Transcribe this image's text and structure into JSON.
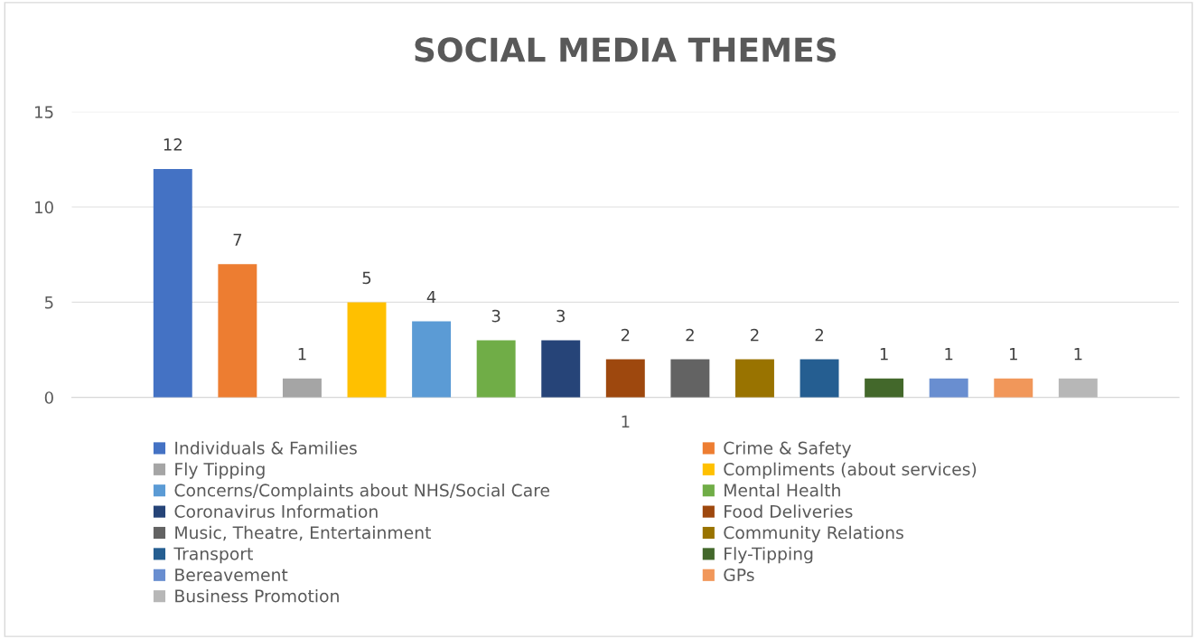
{
  "chart_data": {
    "type": "bar",
    "title": "SOCIAL MEDIA THEMES",
    "categories": [
      "1"
    ],
    "ylim": [
      0,
      15
    ],
    "yticks": [
      0,
      5,
      10,
      15
    ],
    "grid": "y",
    "legend": "bottom",
    "data_labels": true,
    "series": [
      {
        "name": "Individuals & Families",
        "color": "#4472c4",
        "values": [
          12
        ]
      },
      {
        "name": "Crime & Safety",
        "color": "#ed7d31",
        "values": [
          7
        ]
      },
      {
        "name": "Fly Tipping",
        "color": "#a5a5a5",
        "values": [
          1
        ]
      },
      {
        "name": "Compliments (about services)",
        "color": "#ffc000",
        "values": [
          5
        ]
      },
      {
        "name": "Concerns/Complaints about NHS/Social Care",
        "color": "#5b9bd5",
        "values": [
          4
        ]
      },
      {
        "name": "Mental Health",
        "color": "#70ad47",
        "values": [
          3
        ]
      },
      {
        "name": "Coronavirus Information",
        "color": "#264478",
        "values": [
          3
        ]
      },
      {
        "name": "Food Deliveries",
        "color": "#9e480e",
        "values": [
          2
        ]
      },
      {
        "name": "Music, Theatre, Entertainment",
        "color": "#636363",
        "values": [
          2
        ]
      },
      {
        "name": "Community Relations",
        "color": "#997300",
        "values": [
          2
        ]
      },
      {
        "name": "Transport",
        "color": "#255e91",
        "values": [
          2
        ]
      },
      {
        "name": "Fly-Tipping",
        "color": "#43682b",
        "values": [
          1
        ]
      },
      {
        "name": "Bereavement",
        "color": "#698ed0",
        "values": [
          1
        ]
      },
      {
        "name": "GPs",
        "color": "#f1975a",
        "values": [
          1
        ]
      },
      {
        "name": "Business Promotion",
        "color": "#b7b7b7",
        "values": [
          1
        ]
      }
    ]
  }
}
